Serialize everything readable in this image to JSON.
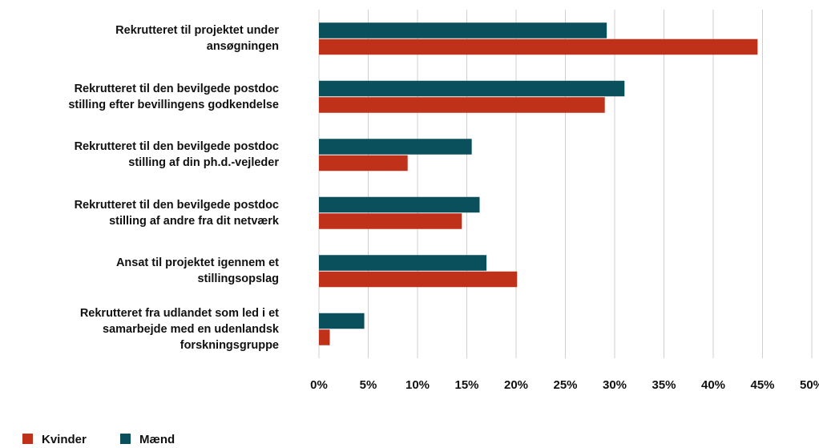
{
  "chart_data": {
    "type": "barh",
    "categories": [
      "Rekrutteret til projektet under\nansøgningen",
      "Rekrutteret til den bevilgede postdoc\nstilling efter bevillingens godkendelse",
      "Rekrutteret til den bevilgede postdoc\nstilling af din ph.d.-vejleder",
      "Rekrutteret til den bevilgede postdoc\nstilling af andre fra dit netværk",
      "Ansat til projektet igennem et\nstillingsopslag",
      "Rekrutteret fra udlandet som led i et\nsamarbejde med en udenlandsk\nforskningsgruppe"
    ],
    "series": [
      {
        "name": "Kvinder",
        "color": "#c0311a",
        "values": [
          44.5,
          29.0,
          9.0,
          14.5,
          20.1,
          1.1
        ]
      },
      {
        "name": "Mænd",
        "color": "#0a4f5c",
        "values": [
          29.2,
          31.0,
          15.5,
          16.3,
          17.0,
          4.6
        ]
      }
    ],
    "xlim": [
      0,
      50
    ],
    "xticks": [
      {
        "value": 0,
        "label": "0%"
      },
      {
        "value": 5,
        "label": "5%"
      },
      {
        "value": 10,
        "label": "10%"
      },
      {
        "value": 15,
        "label": "15%"
      },
      {
        "value": 20,
        "label": "20%"
      },
      {
        "value": 25,
        "label": "25%"
      },
      {
        "value": 30,
        "label": "30%"
      },
      {
        "value": 35,
        "label": "35%"
      },
      {
        "value": 40,
        "label": "40%"
      },
      {
        "value": 45,
        "label": "45%"
      },
      {
        "value": 50,
        "label": "50%"
      }
    ],
    "grid": true,
    "legend": "bottom-left"
  }
}
